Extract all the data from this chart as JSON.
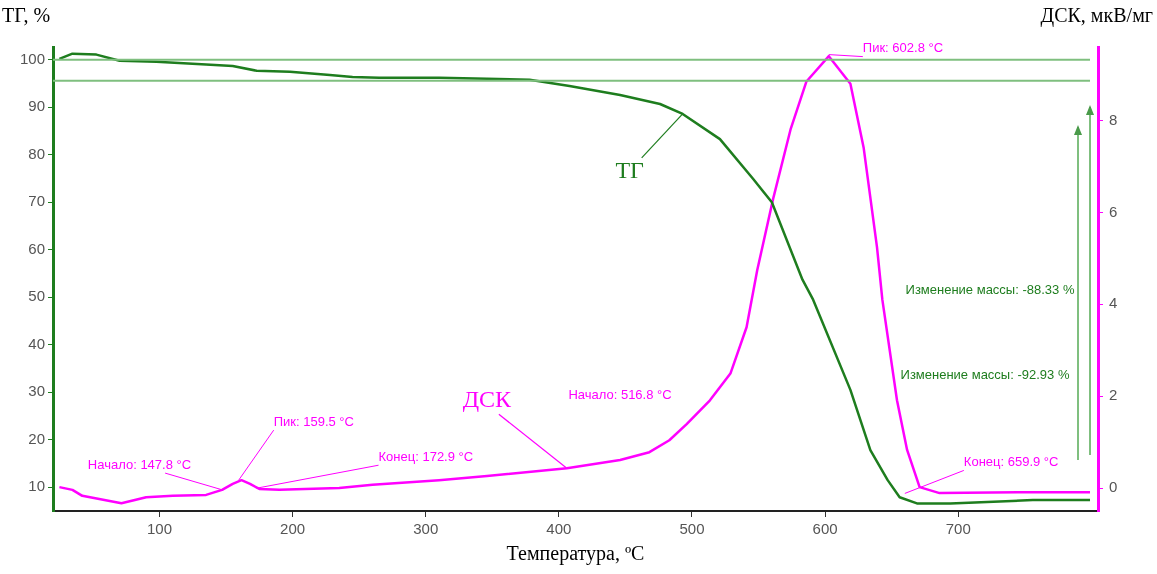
{
  "chart_data": {
    "type": "line",
    "xlabel": "Температура, ºC",
    "ylabel": "ТГ, %",
    "y2label": "ДСК, мкВ/мг",
    "series": [
      {
        "name": "ТГ",
        "color": "#1e7d1e",
        "x": [
          24.8,
          34.6,
          52.6,
          70,
          97.7,
          135,
          155,
          173,
          198,
          228,
          245,
          265,
          310,
          346,
          378,
          408,
          446,
          476,
          493,
          521,
          546,
          560,
          583,
          591,
          619,
          634,
          647,
          656,
          669,
          694,
          756,
          799
        ],
        "values": [
          100.2,
          101.3,
          101.1,
          99.8,
          99.6,
          99,
          98.7,
          97.7,
          97.5,
          96.8,
          96.4,
          96.2,
          96.2,
          96,
          95.8,
          94.5,
          92.6,
          90.7,
          88.6,
          83.3,
          74.9,
          70,
          53.7,
          49.5,
          30.5,
          17.8,
          11.5,
          7.9,
          6.6,
          6.6,
          7.3,
          7.3
        ]
      },
      {
        "name": "ДСК",
        "color": "#ff00ff",
        "axis": "y2",
        "x": [
          24.8,
          34.6,
          42,
          71.4,
          90,
          110,
          135,
          147,
          155,
          161.6,
          168,
          175,
          190,
          235,
          260,
          310,
          346,
          406,
          446,
          468,
          483,
          496,
          513.5,
          529,
          541,
          549,
          561,
          574,
          586,
          602.8,
          619,
          629,
          639,
          643,
          654,
          661.6,
          671,
          686,
          756,
          799
        ],
        "values": [
          0.02,
          -0.04,
          -0.17,
          -0.33,
          -0.2,
          -0.17,
          -0.15,
          -0.04,
          0.09,
          0.17,
          0.09,
          -0.02,
          -0.04,
          0,
          0.07,
          0.17,
          0.26,
          0.43,
          0.61,
          0.78,
          1.04,
          1.39,
          1.91,
          2.5,
          3.5,
          4.74,
          6.3,
          7.8,
          8.85,
          9.4,
          8.8,
          7.4,
          5.24,
          4.1,
          1.91,
          0.83,
          0.02,
          -0.11,
          -0.09,
          -0.09
        ]
      }
    ],
    "xlim": [
      20,
      805
    ],
    "xticks": [
      100,
      200,
      300,
      400,
      500,
      600,
      700
    ],
    "ylim": [
      5,
      102.7
    ],
    "yticks": [
      10,
      20,
      30,
      40,
      50,
      60,
      70,
      80,
      90,
      100
    ],
    "y2lim": [
      -0.5,
      9.6
    ],
    "y2ticks": [
      0,
      2,
      4,
      6,
      8
    ],
    "ref_lines": [
      {
        "axis": "y",
        "value": 100,
        "color": "#7fbf7f"
      },
      {
        "axis": "y",
        "value": 95.6,
        "color": "#7fbf7f"
      }
    ],
    "annotations": [
      {
        "text": "Начало: 147.8 °C",
        "x": 147.8,
        "y": 9.4
      },
      {
        "text": "Пик: 159.5 °C",
        "x": 159.5,
        "y": 11.5
      },
      {
        "text": "Конец: 172.9 °C",
        "x": 172.9,
        "y": 9.8
      },
      "Начало: 516.8 °C",
      {
        "text": "Пик: 602.8 °C",
        "x": 602.8,
        "y": 101.1
      },
      {
        "text": "Конец: 659.9 °C",
        "x": 659.9,
        "y": 8.7
      },
      "Изменение массы: -88.33 %",
      "Изменение массы: -92.93 %"
    ],
    "grid": false,
    "marker": "none",
    "line_style": "solid"
  }
}
